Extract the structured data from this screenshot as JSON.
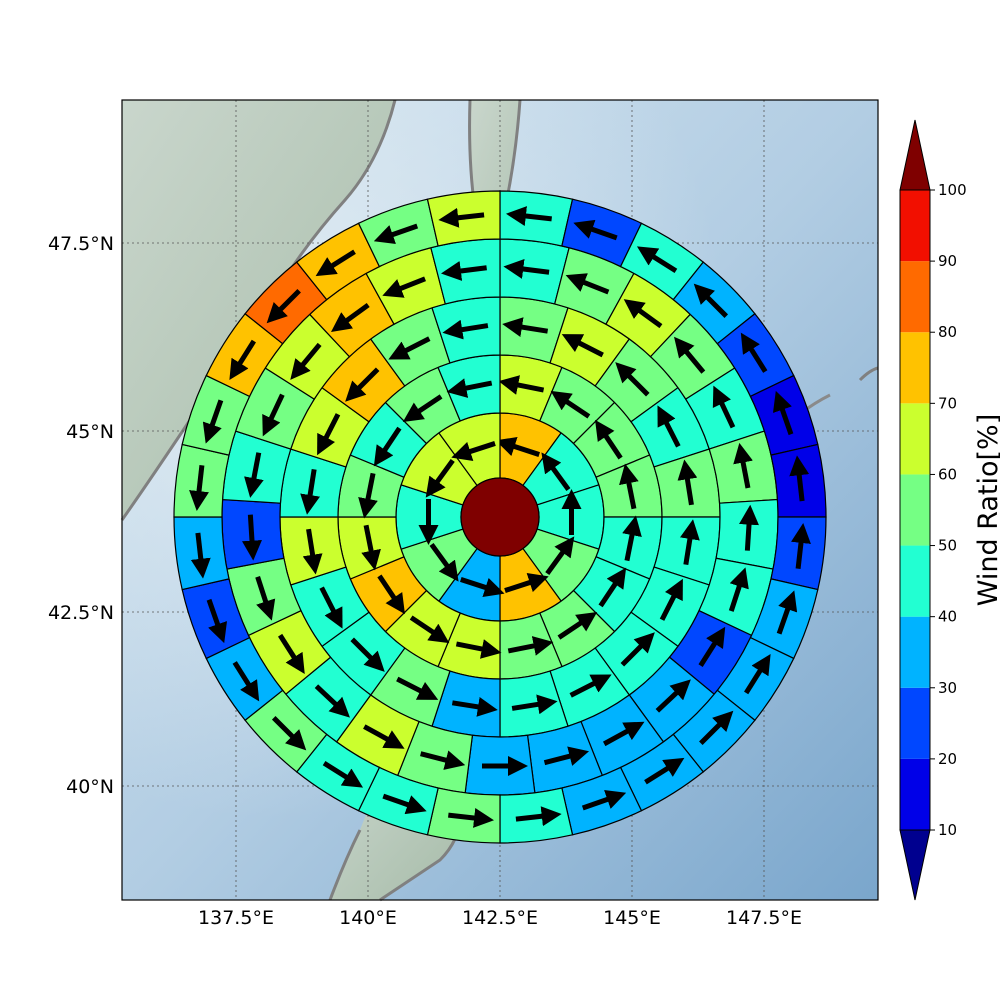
{
  "map": {
    "lon_labels": [
      "137.5°E",
      "140°E",
      "142.5°E",
      "145°E",
      "147.5°E"
    ],
    "lat_labels": [
      "47.5°N",
      "45°N",
      "42.5°N",
      "40°N"
    ]
  },
  "colorbar": {
    "label": "Wind Ratio[%]",
    "ticks": [
      "10",
      "20",
      "30",
      "40",
      "50",
      "60",
      "70",
      "80",
      "90",
      "100"
    ],
    "colors": [
      "#00008f",
      "#0000e8",
      "#0047ff",
      "#00b3ff",
      "#22ffd2",
      "#75ff84",
      "#cbff2e",
      "#ffc200",
      "#ff6a00",
      "#f20f00",
      "#7f0000"
    ]
  },
  "rose": {
    "center_value": 100,
    "rings": [
      {
        "values": [
          70,
          40,
          40,
          50,
          70,
          30,
          50,
          40,
          60,
          60
        ]
      },
      {
        "values": [
          60,
          50,
          50,
          50,
          40,
          40,
          50,
          50,
          60,
          60,
          70,
          60,
          50,
          40,
          50,
          40
        ]
      },
      {
        "values": [
          50,
          60,
          50,
          40,
          50,
          40,
          40,
          40,
          40,
          40,
          30,
          50,
          40,
          40,
          60,
          40,
          60,
          70,
          50,
          40
        ]
      },
      {
        "values": [
          40,
          50,
          60,
          50,
          40,
          50,
          40,
          40,
          20,
          30,
          30,
          30,
          30,
          50,
          60,
          40,
          60,
          50,
          20,
          40,
          50,
          60,
          70,
          60,
          40
        ]
      },
      {
        "values": [
          40,
          20,
          40,
          30,
          20,
          10,
          10,
          20,
          30,
          30,
          30,
          30,
          30,
          40,
          50,
          40,
          40,
          50,
          30,
          20,
          30,
          50,
          50,
          70,
          80,
          70,
          50,
          60
        ]
      }
    ]
  }
}
